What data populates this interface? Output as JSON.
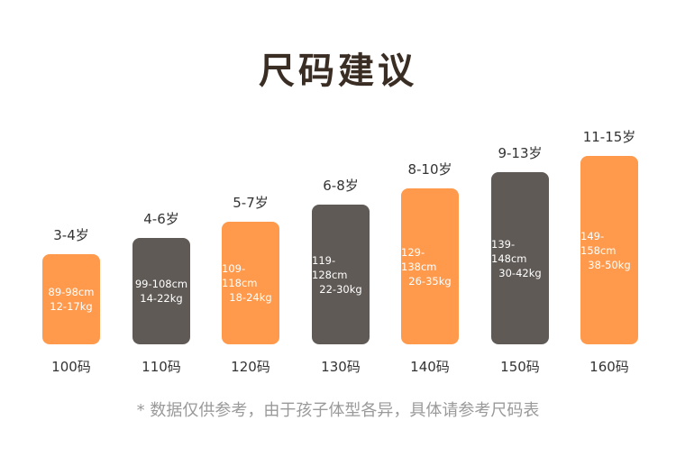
{
  "title": "尺码建议",
  "note": "* 数据仅供参考，由于孩子体型各异，具体请参考尺码表",
  "colors": {
    "orange": "#ff9a4d",
    "gray": "#5f5a56",
    "title": "#3a2d24"
  },
  "chart_data": {
    "type": "bar",
    "categories": [
      "100码",
      "110码",
      "120码",
      "130码",
      "140码",
      "150码",
      "160码"
    ],
    "series": [
      {
        "values": [
          1,
          2,
          3,
          4,
          5,
          6,
          7
        ],
        "ages": [
          "3-4岁",
          "4-6岁",
          "5-7岁",
          "6-8岁",
          "8-10岁",
          "9-13岁",
          "11-15岁"
        ],
        "heights": [
          "89-98cm",
          "99-108cm",
          "109-118cm",
          "119-128cm",
          "129-138cm",
          "139-148cm",
          "149-158cm"
        ],
        "weights": [
          "12-17kg",
          "14-22kg",
          "18-24kg",
          "22-30kg",
          "26-35kg",
          "30-42kg",
          "38-50kg"
        ],
        "bar_colors": [
          "#ff9a4d",
          "#5f5a56",
          "#ff9a4d",
          "#5f5a56",
          "#ff9a4d",
          "#5f5a56",
          "#ff9a4d"
        ]
      }
    ]
  }
}
